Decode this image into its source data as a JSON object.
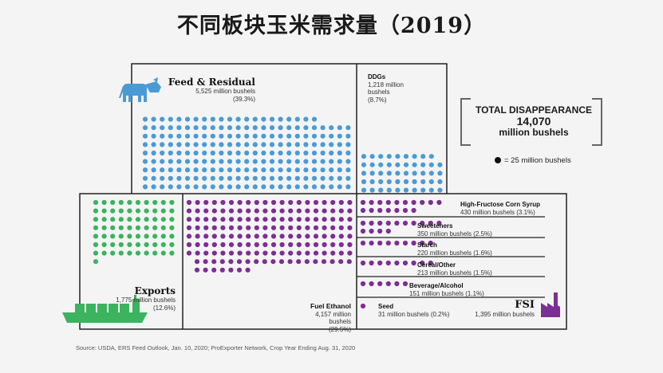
{
  "title": "不同板块玉米需求量（2019）",
  "total": {
    "label": "TOTAL DISAPPEARANCE",
    "value": "14,070",
    "unit": "million bushels"
  },
  "legend": {
    "text": "= 25 million bushels"
  },
  "source": "Source: USDA, ERS Feed Outlook, Jan. 10, 2020; ProExporter Network, Crop Year Ending Aug. 31, 2020",
  "colors": {
    "feed": "#4a9bd5",
    "exports": "#3bb35f",
    "fsi": "#7c2f93",
    "frame": "#222222",
    "background": "#f4f4f4"
  },
  "icons": [
    "cow-icon",
    "cargo-ship-icon",
    "factory-icon"
  ],
  "chart_data": {
    "type": "pictograph",
    "unit_per_dot": 25,
    "total_million_bushels": 14070,
    "categories": [
      {
        "name": "Feed & Residual",
        "value_text": "5,525 million bushels",
        "pct_text": "(39.3%)",
        "value": 5525,
        "pct": 39.3
      },
      {
        "name": "DDGs",
        "value_text": "1,218 million bushels",
        "pct_text": "(8.7%)",
        "value": 1218,
        "pct": 8.7
      },
      {
        "name": "Exports",
        "value_text": "1,775 million bushels",
        "pct_text": "(12.6%)",
        "value": 1775,
        "pct": 12.6
      },
      {
        "name": "Fuel Ethanol",
        "value_text": "4,157 million bushels",
        "pct_text": "(29.5%)",
        "value": 4157,
        "pct": 29.5
      },
      {
        "name": "FSI",
        "value_text": "1,395 million bushels",
        "value": 1395
      }
    ],
    "fsi_breakdown": [
      {
        "name": "High-Fructose Corn Syrup",
        "text": "430 million bushels (3.1%)",
        "value": 430,
        "pct": 3.1
      },
      {
        "name": "Sweeteners",
        "text": "350 million bushels (2.5%)",
        "value": 350,
        "pct": 2.5
      },
      {
        "name": "Starch",
        "text": "220 million bushels (1.6%)",
        "value": 220,
        "pct": 1.6
      },
      {
        "name": "Cereal/Other",
        "text": "213 million bushels (1.5%)",
        "value": 213,
        "pct": 1.5
      },
      {
        "name": "Beverage/Alcohol",
        "text": "151 million bushels (1.1%)",
        "value": 151,
        "pct": 1.1
      },
      {
        "name": "Seed",
        "text": "31 million bushels (0.2%)",
        "value": 31,
        "pct": 0.2
      }
    ]
  }
}
